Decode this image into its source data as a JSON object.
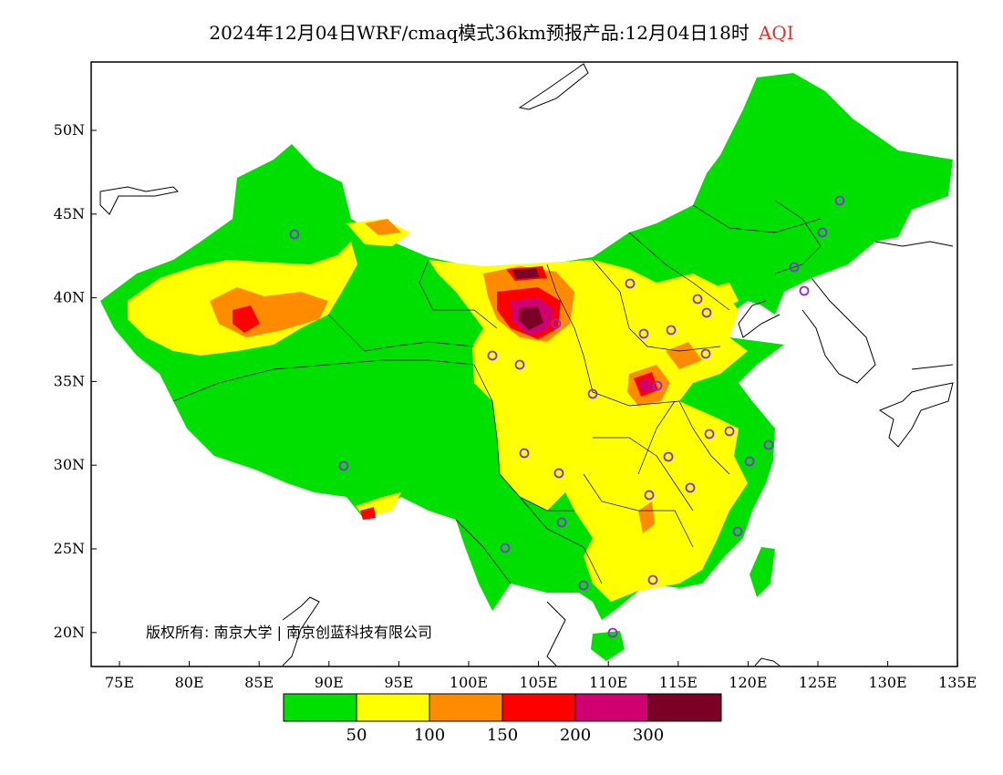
{
  "title": {
    "main": "2024年12月04日WRF/cmaq模式36km预报产品:12月04日18时",
    "variable": "AQI"
  },
  "axes": {
    "x_ticks": [
      "75E",
      "80E",
      "85E",
      "90E",
      "95E",
      "100E",
      "105E",
      "110E",
      "115E",
      "120E",
      "125E",
      "130E",
      "135E"
    ],
    "y_ticks": [
      "50N",
      "45N",
      "40N",
      "35N",
      "30N",
      "25N",
      "20N"
    ]
  },
  "copyright": "版权所有: 南京大学 | 南京创蓝科技有限公司",
  "legend": {
    "colors": [
      "#00e000",
      "#ffff00",
      "#ff8c00",
      "#ff0000",
      "#d00070",
      "#7a0026"
    ],
    "labels": [
      "50",
      "100",
      "150",
      "200",
      "300"
    ]
  },
  "map_colors": {
    "good": "#00e000",
    "moderate": "#ffff00",
    "light": "#ff8c00",
    "medium": "#ff0000",
    "heavy": "#d00070",
    "severe": "#7a0026",
    "station": "#8a2be2"
  }
}
